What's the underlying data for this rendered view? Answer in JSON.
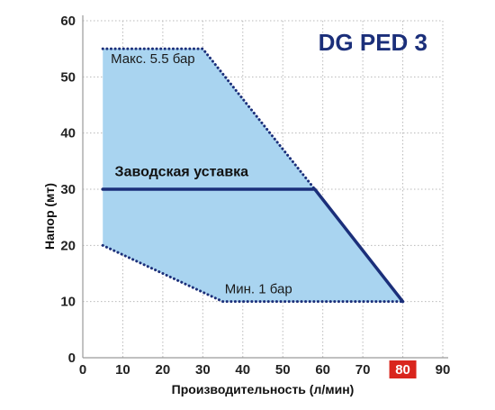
{
  "chart_data": {
    "type": "area",
    "title": "DG PED 3",
    "xlabel": "Производительность (л/мин)",
    "ylabel": "Напор (мт)",
    "xlim": [
      0,
      90
    ],
    "ylim": [
      0,
      60
    ],
    "x_ticks": [
      0,
      10,
      20,
      30,
      40,
      50,
      60,
      70,
      80,
      90
    ],
    "y_ticks": [
      0,
      10,
      20,
      30,
      40,
      50,
      60
    ],
    "highlighted_x_tick": 80,
    "grid": true,
    "operating_region": {
      "name": "",
      "polygon": [
        [
          5,
          55
        ],
        [
          30,
          55
        ],
        [
          58,
          30
        ],
        [
          80,
          10
        ],
        [
          35,
          10
        ],
        [
          5,
          20
        ]
      ]
    },
    "series": [
      {
        "name": "Макс. 5.5 бар",
        "style": "dotted",
        "x": [
          5,
          30,
          58
        ],
        "y": [
          55,
          55,
          30
        ]
      },
      {
        "name": "Мин. 1 бар",
        "style": "dotted",
        "x": [
          5,
          35,
          80
        ],
        "y": [
          20,
          10,
          10
        ]
      },
      {
        "name": "Заводская уставка",
        "style": "solid",
        "x": [
          5,
          58,
          80
        ],
        "y": [
          30,
          30,
          10
        ]
      }
    ],
    "annotations": [
      {
        "text": "Макс. 5.5 бар",
        "x": 7,
        "y": 52.5
      },
      {
        "text": "Заводская уставка",
        "x": 8,
        "y": 32.3
      },
      {
        "text": "Мин. 1 бар",
        "x": 35.5,
        "y": 11.5
      }
    ],
    "colors": {
      "region_fill": "#a9d4f0",
      "region_border": "#1b2f7a",
      "setpoint_line": "#1b2f7a",
      "title": "#1b2f7a",
      "grid": "#b9b9b9",
      "highlight_tick_bg": "#d9251d",
      "highlight_tick_text": "#ffffff"
    }
  }
}
